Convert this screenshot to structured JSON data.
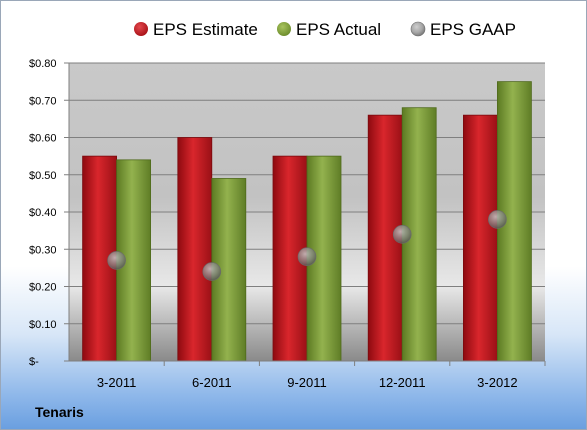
{
  "company": "Tenaris",
  "colors": {
    "estimate": "#c0141b",
    "actual": "#7a9a36",
    "gaap": "#8c8c8c"
  },
  "chart_data": {
    "type": "bar",
    "categories": [
      "3-2011",
      "6-2011",
      "9-2011",
      "12-2011",
      "3-2012"
    ],
    "series": [
      {
        "name": "EPS Estimate",
        "kind": "bar",
        "values": [
          0.55,
          0.6,
          0.55,
          0.66,
          0.66
        ]
      },
      {
        "name": "EPS Actual",
        "kind": "bar",
        "values": [
          0.54,
          0.49,
          0.55,
          0.68,
          0.75
        ]
      },
      {
        "name": "EPS GAAP",
        "kind": "marker",
        "values": [
          0.27,
          0.24,
          0.28,
          0.34,
          0.38
        ]
      }
    ],
    "ylim": [
      0,
      0.8
    ],
    "yticks": [
      {
        "value": 0.8,
        "label": "$0.80"
      },
      {
        "value": 0.7,
        "label": "$0.70"
      },
      {
        "value": 0.6,
        "label": "$0.60"
      },
      {
        "value": 0.5,
        "label": "$0.50"
      },
      {
        "value": 0.4,
        "label": "$0.40"
      },
      {
        "value": 0.3,
        "label": "$0.30"
      },
      {
        "value": 0.2,
        "label": "$0.20"
      },
      {
        "value": 0.1,
        "label": "$0.10"
      },
      {
        "value": 0.0,
        "label": "$-"
      }
    ],
    "grid": true,
    "legend": "top"
  }
}
